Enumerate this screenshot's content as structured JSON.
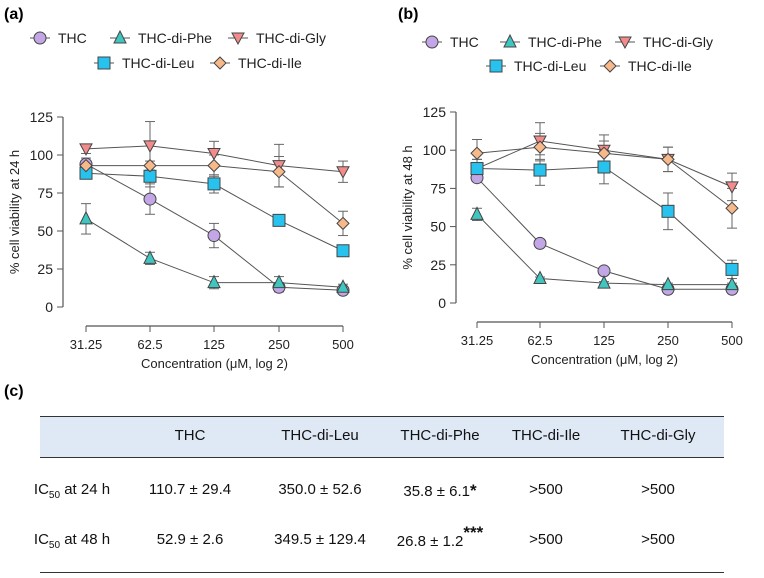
{
  "chart_data": [
    {
      "type": "line",
      "panel": "(a)",
      "xlabel": "Concentration (μM, log 2)",
      "ylabel": "% cell viability at 24 h",
      "categories": [
        "31.25",
        "62.5",
        "125",
        "250",
        "500"
      ],
      "ylim": [
        0,
        125
      ],
      "yticks": [
        0,
        25,
        50,
        75,
        100,
        125
      ],
      "legend": "top",
      "series": [
        {
          "name": "THC",
          "marker": "circle",
          "color": "#c3a6e6",
          "values": [
            94,
            71,
            47,
            13,
            11
          ],
          "errors": [
            4,
            10,
            8,
            3,
            2
          ]
        },
        {
          "name": "THC-di-Phe",
          "marker": "triangle-up",
          "color": "#3fc6c0",
          "values": [
            58,
            32,
            16,
            16,
            13
          ],
          "errors": [
            10,
            4,
            4,
            4,
            2
          ]
        },
        {
          "name": "THC-di-Gly",
          "marker": "triangle-down",
          "color": "#f28c8c",
          "values": [
            104,
            106,
            101,
            93,
            89
          ],
          "errors": [
            3,
            16,
            8,
            14,
            7
          ]
        },
        {
          "name": "THC-di-Leu",
          "marker": "square",
          "color": "#27c3ee",
          "values": [
            88,
            86,
            81,
            57,
            37
          ],
          "errors": [
            3,
            7,
            6,
            2,
            2
          ]
        },
        {
          "name": "THC-di-Ile",
          "marker": "diamond",
          "color": "#f7b98a",
          "values": [
            93,
            93,
            93,
            89,
            55
          ],
          "errors": [
            2,
            3,
            7,
            10,
            8
          ]
        }
      ]
    },
    {
      "type": "line",
      "panel": "(b)",
      "xlabel": "Concentration (μM, log 2)",
      "ylabel": "% cell viability at 48 h",
      "categories": [
        "31.25",
        "62.5",
        "125",
        "250",
        "500"
      ],
      "ylim": [
        0,
        125
      ],
      "yticks": [
        0,
        25,
        50,
        75,
        100,
        125
      ],
      "legend": "top",
      "series": [
        {
          "name": "THC",
          "marker": "circle",
          "color": "#c3a6e6",
          "values": [
            82,
            39,
            21,
            9,
            9
          ],
          "errors": [
            2,
            2,
            1,
            1,
            1
          ]
        },
        {
          "name": "THC-di-Phe",
          "marker": "triangle-up",
          "color": "#3fc6c0",
          "values": [
            58,
            16,
            13,
            12,
            12
          ],
          "errors": [
            4,
            1,
            1,
            1,
            1
          ]
        },
        {
          "name": "THC-di-Gly",
          "marker": "triangle-down",
          "color": "#f28c8c",
          "values": [
            88,
            106,
            100,
            94,
            76
          ],
          "errors": [
            6,
            12,
            10,
            8,
            9
          ]
        },
        {
          "name": "THC-di-Leu",
          "marker": "square",
          "color": "#27c3ee",
          "values": [
            88,
            87,
            89,
            60,
            22
          ],
          "errors": [
            6,
            10,
            11,
            12,
            6
          ]
        },
        {
          "name": "THC-di-Ile",
          "marker": "diamond",
          "color": "#f7b98a",
          "values": [
            98,
            102,
            98,
            94,
            62
          ],
          "errors": [
            9,
            9,
            8,
            8,
            13
          ]
        }
      ]
    }
  ],
  "panel_c": {
    "label": "(c)",
    "headers": [
      "THC",
      "THC-di-Leu",
      "THC-di-Phe",
      "THC-di-Ile",
      "THC-di-Gly"
    ],
    "rows": [
      {
        "label": "IC50 at 24 h",
        "label_main": "IC",
        "label_sub": "50",
        "label_rest": " at 24 h",
        "values": [
          "110.7 ± 29.4",
          "350.0 ± 52.6",
          "35.8 ± 6.1",
          "&gt;500",
          ">500"
        ],
        "sig": "*"
      },
      {
        "label": "IC50 at 48 h",
        "label_main": "IC",
        "label_sub": "50",
        "label_rest": " at 48 h",
        "values": [
          "52.9 ± 2.6",
          "349.5 ± 129.4",
          "26.8 ± 1.2",
          ">500",
          ">500"
        ],
        "sig": "***"
      }
    ]
  }
}
